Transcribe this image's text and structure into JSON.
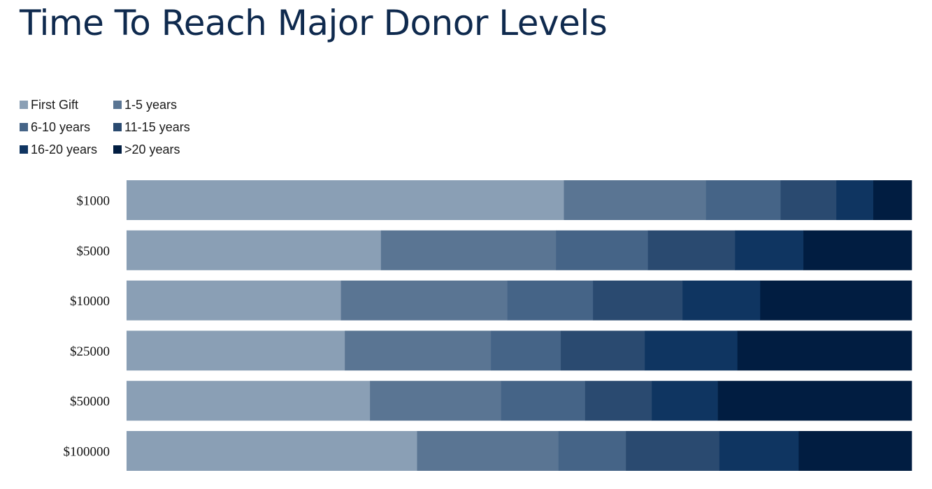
{
  "title": "Time To Reach Major Donor Levels",
  "chart_data": {
    "type": "bar",
    "orientation": "horizontal",
    "stacked": true,
    "normalized_percent": true,
    "title": "Time To Reach Major Donor Levels",
    "categories": [
      "$1000",
      "$5000",
      "$10000",
      "$25000",
      "$50000",
      "$100000"
    ],
    "series": [
      {
        "name": "First Gift",
        "color": "#8a9fb5",
        "values": [
          55.7,
          32.4,
          27.3,
          27.8,
          31.0,
          37.0
        ]
      },
      {
        "name": "1-5 years",
        "color": "#5a7593",
        "values": [
          18.1,
          22.3,
          21.2,
          18.6,
          16.7,
          18.0
        ]
      },
      {
        "name": "6-10 years",
        "color": "#456487",
        "values": [
          9.5,
          11.7,
          10.9,
          8.9,
          10.7,
          8.6
        ]
      },
      {
        "name": "11-15 years",
        "color": "#2a4a70",
        "values": [
          7.1,
          11.1,
          11.4,
          10.7,
          8.5,
          11.9
        ]
      },
      {
        "name": "16-20 years",
        "color": "#0f3561",
        "values": [
          4.7,
          8.7,
          9.9,
          11.8,
          8.4,
          10.1
        ]
      },
      {
        "name": ">20 years",
        "color": "#011d41",
        "values": [
          4.9,
          13.8,
          19.3,
          22.2,
          24.7,
          14.4
        ]
      }
    ],
    "xlim": [
      0,
      100
    ],
    "legend_position": "top-left",
    "grid": false
  }
}
